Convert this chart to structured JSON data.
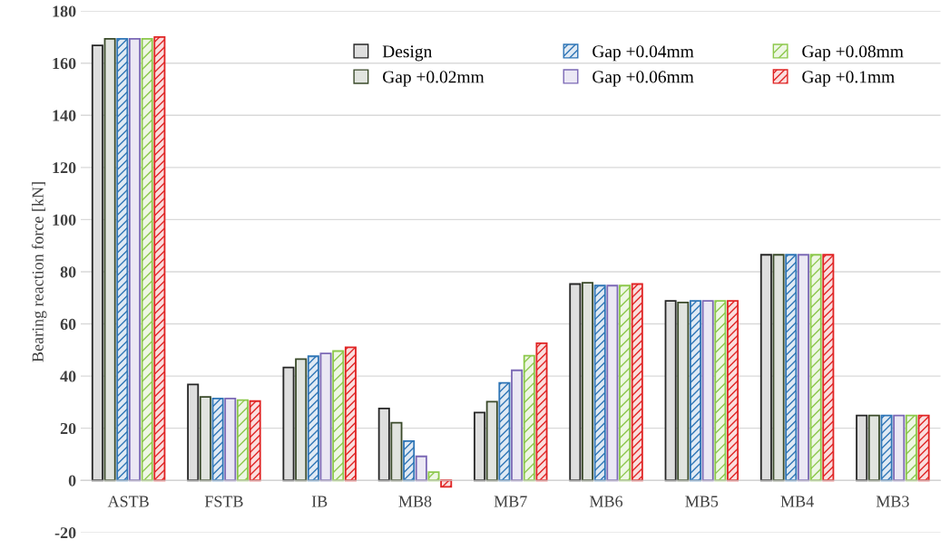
{
  "chart_data": {
    "type": "bar",
    "ylabel": "Bearing reaction force [kN]",
    "categories": [
      "ASTB",
      "FSTB",
      "IB",
      "MB8",
      "MB7",
      "MB6",
      "MB5",
      "MB4",
      "MB3"
    ],
    "series": [
      {
        "name": "Design",
        "color": "#262626",
        "values": [
          166.8,
          36.8,
          43.3,
          27.6,
          26.0,
          75.3,
          68.8,
          86.5,
          24.9
        ]
      },
      {
        "name": "Gap +0.02mm",
        "color": "#3a4a2a",
        "values": [
          169.3,
          32.0,
          46.5,
          22.1,
          30.2,
          75.8,
          68.2,
          86.5,
          24.9
        ]
      },
      {
        "name": "Gap +0.04mm",
        "color": "#2e75b6",
        "values": [
          169.3,
          31.4,
          47.6,
          15.1,
          37.4,
          74.7,
          68.8,
          86.5,
          24.9
        ]
      },
      {
        "name": "Gap +0.06mm",
        "color": "#7b68b5",
        "values": [
          169.3,
          31.4,
          48.7,
          9.2,
          42.2,
          74.7,
          68.8,
          86.5,
          24.9
        ]
      },
      {
        "name": "Gap +0.08mm",
        "color": "#8cc84b",
        "values": [
          169.3,
          30.8,
          49.6,
          3.2,
          47.8,
          74.7,
          68.8,
          86.5,
          24.9
        ]
      },
      {
        "name": "Gap +0.1mm",
        "color": "#e02424",
        "values": [
          170.0,
          30.4,
          51.0,
          -2.5,
          52.6,
          75.3,
          68.8,
          86.5,
          24.9
        ]
      }
    ],
    "ylim": [
      -20,
      180
    ],
    "yticks": [
      -20,
      0,
      20,
      40,
      60,
      80,
      100,
      120,
      140,
      160,
      180
    ],
    "grid": "y",
    "legend": "top right"
  }
}
